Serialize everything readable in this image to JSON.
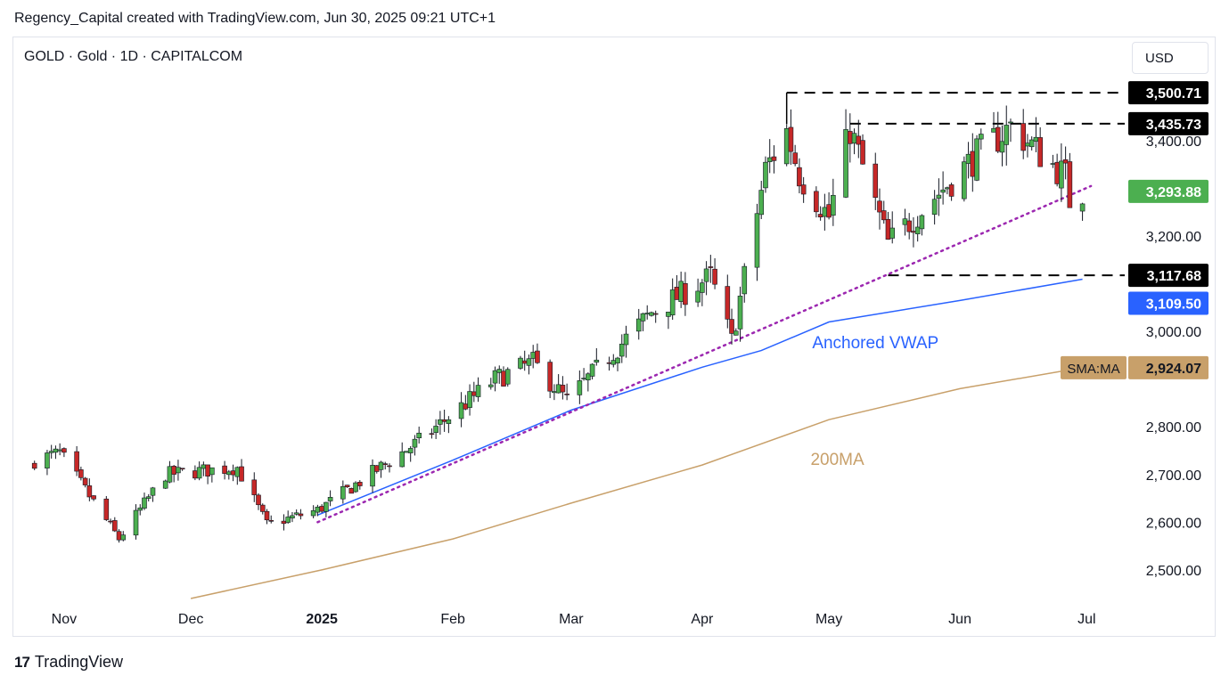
{
  "header": {
    "text": "Regency_Capital created with TradingView.com, Jun 30, 2025 09:21 UTC+1"
  },
  "symbol": {
    "text": "GOLD · Gold · 1D · CAPITALCOM"
  },
  "currency": {
    "label": "USD"
  },
  "footer": {
    "brand": "TradingView",
    "logo_text": "17"
  },
  "colors": {
    "up": "#089981",
    "down": "#f23645",
    "up_body": "#4caf50",
    "down_body": "#c62828",
    "vwap": "#2962ff",
    "sma": "#c8a06a",
    "trendline": "#9c27b0",
    "price_tag": "#4caf50",
    "vwap_tag": "#2962ff",
    "sma_tag": "#c8a06a",
    "level_tag": "#000000"
  },
  "chart_data": {
    "type": "candlestick",
    "title": "GOLD · Gold · 1D · CAPITALCOM",
    "y_axis": {
      "ticks": [
        2500,
        2600,
        2700,
        2800,
        3000,
        3200,
        3400
      ],
      "tick_labels": [
        "2,500.00",
        "2,600.00",
        "2,700.00",
        "2,800.00",
        "3,000.00",
        "3,200.00",
        "3,400.00"
      ],
      "range": [
        2430,
        3560
      ]
    },
    "x_axis": {
      "labels": [
        "Nov",
        "Dec",
        "2025",
        "Feb",
        "Mar",
        "Apr",
        "May",
        "Jun",
        "Jul"
      ]
    },
    "price_tags": [
      {
        "value": "3,500.71",
        "kind": "level"
      },
      {
        "value": "3,435.73",
        "kind": "level"
      },
      {
        "value": "3,293.88",
        "kind": "price"
      },
      {
        "value": "3,117.68",
        "kind": "level"
      },
      {
        "value": "3,109.50",
        "kind": "vwap"
      },
      {
        "value": "2,924.07",
        "kind": "sma",
        "prefix": "SMA:MA"
      }
    ],
    "horizontal_levels": [
      3500.71,
      3435.73,
      3117.68
    ],
    "annotations": [
      {
        "text": "Anchored VWAP",
        "color": "#2962ff"
      },
      {
        "text": "200MA",
        "color": "#c8a06a"
      }
    ],
    "series": [
      {
        "name": "GOLD",
        "kind": "ohlc",
        "anchors": [
          {
            "date": "2024-10-25",
            "close": 2730
          },
          {
            "date": "2024-10-31",
            "close": 2745
          },
          {
            "date": "2024-11-14",
            "close": 2565
          },
          {
            "date": "2024-11-25",
            "close": 2700
          },
          {
            "date": "2024-12-12",
            "close": 2715
          },
          {
            "date": "2024-12-19",
            "close": 2595
          },
          {
            "date": "2024-12-31",
            "close": 2625
          },
          {
            "date": "2025-01-24",
            "close": 2770
          },
          {
            "date": "2025-02-11",
            "close": 2900
          },
          {
            "date": "2025-02-20",
            "close": 2935
          },
          {
            "date": "2025-02-28",
            "close": 2855
          },
          {
            "date": "2025-03-20",
            "close": 3040
          },
          {
            "date": "2025-04-03",
            "close": 3115
          },
          {
            "date": "2025-04-08",
            "close": 2980
          },
          {
            "date": "2025-04-16",
            "close": 3340
          },
          {
            "date": "2025-04-21",
            "close": 3420
          },
          {
            "date": "2025-04-24",
            "close": 3330
          },
          {
            "date": "2025-05-01",
            "close": 3240
          },
          {
            "date": "2025-05-06",
            "close": 3425
          },
          {
            "date": "2025-05-15",
            "close": 3185
          },
          {
            "date": "2025-06-05",
            "close": 3370
          },
          {
            "date": "2025-06-13",
            "close": 3430
          },
          {
            "date": "2025-06-26",
            "close": 3325
          },
          {
            "date": "2025-06-27",
            "close": 3275
          },
          {
            "date": "2025-06-30",
            "close": 3294
          }
        ]
      },
      {
        "name": "Anchored VWAP",
        "points": [
          {
            "date": "2024-12-31",
            "value": 2615
          },
          {
            "date": "2025-02-01",
            "value": 2730
          },
          {
            "date": "2025-03-01",
            "value": 2835
          },
          {
            "date": "2025-04-01",
            "value": 2925
          },
          {
            "date": "2025-04-15",
            "value": 2960
          },
          {
            "date": "2025-05-01",
            "value": 3020
          },
          {
            "date": "2025-06-01",
            "value": 3065
          },
          {
            "date": "2025-06-30",
            "value": 3109.5
          }
        ]
      },
      {
        "name": "200MA",
        "points": [
          {
            "date": "2024-12-01",
            "value": 2440
          },
          {
            "date": "2025-01-01",
            "value": 2500
          },
          {
            "date": "2025-02-01",
            "value": 2565
          },
          {
            "date": "2025-03-01",
            "value": 2640
          },
          {
            "date": "2025-04-01",
            "value": 2720
          },
          {
            "date": "2025-05-01",
            "value": 2815
          },
          {
            "date": "2025-06-01",
            "value": 2880
          },
          {
            "date": "2025-06-30",
            "value": 2924.07
          }
        ]
      },
      {
        "name": "Trendline",
        "points": [
          {
            "date": "2024-12-31",
            "value": 2600
          },
          {
            "date": "2025-07-02",
            "value": 3305
          }
        ]
      }
    ]
  }
}
